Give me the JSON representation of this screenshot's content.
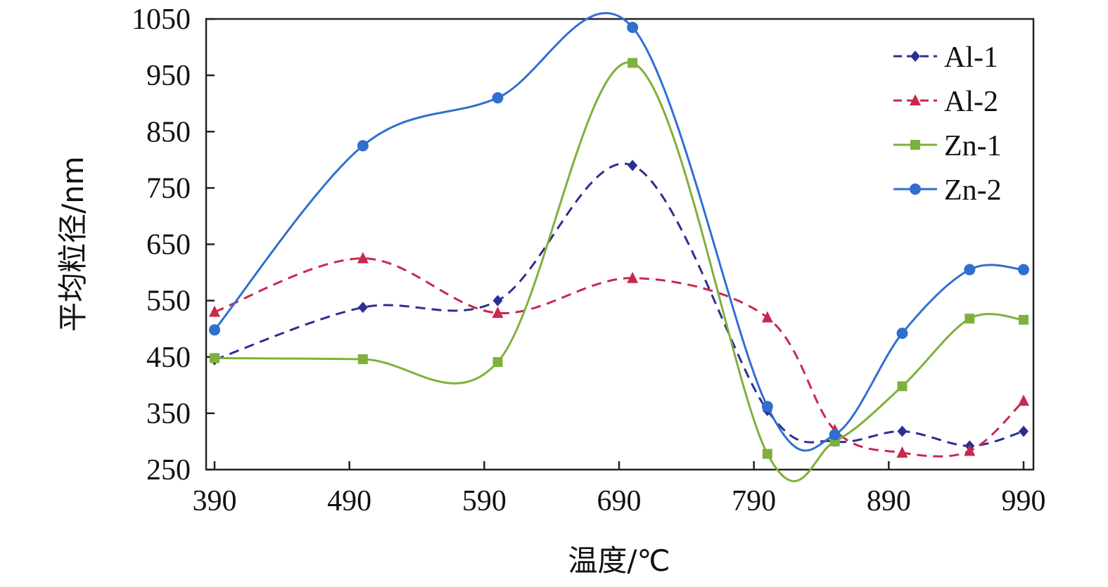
{
  "chart_data": {
    "type": "line",
    "xlabel": "温度/℃",
    "ylabel": "平均粒径/nm",
    "xlim": [
      390,
      990
    ],
    "ylim": [
      250,
      1050
    ],
    "xticks": [
      "390",
      "490",
      "590",
      "690",
      "790",
      "890",
      "990"
    ],
    "yticks": [
      "250",
      "350",
      "450",
      "550",
      "650",
      "750",
      "850",
      "950",
      "1050"
    ],
    "x": [
      390,
      500,
      600,
      700,
      800,
      850,
      900,
      950,
      1000
    ],
    "legend_position": "top-right",
    "grid": false,
    "series": [
      {
        "name": "Al-1",
        "marker": "diamond",
        "dash": true,
        "color": "#2b2f8f",
        "values": [
          445,
          538,
          550,
          790,
          355,
          300,
          318,
          292,
          318
        ]
      },
      {
        "name": "Al-2",
        "marker": "triangle",
        "dash": true,
        "color": "#c8284e",
        "values": [
          530,
          625,
          528,
          590,
          520,
          320,
          280,
          283,
          372
        ]
      },
      {
        "name": "Zn-1",
        "marker": "square",
        "dash": false,
        "color": "#7fb03a",
        "values": [
          448,
          446,
          441,
          972,
          278,
          300,
          398,
          518,
          516
        ]
      },
      {
        "name": "Zn-2",
        "marker": "circle",
        "dash": false,
        "color": "#2f6fd0",
        "values": [
          498,
          825,
          910,
          1035,
          362,
          312,
          492,
          605,
          605
        ]
      }
    ]
  }
}
